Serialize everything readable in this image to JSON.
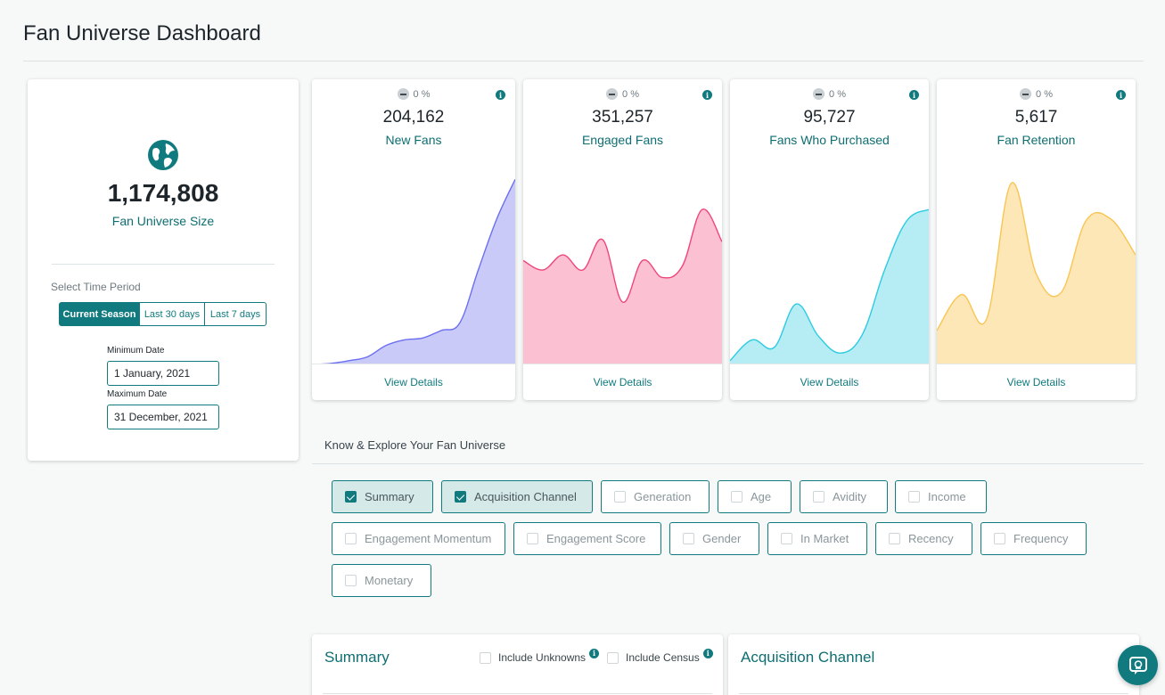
{
  "page": {
    "title": "Fan Universe Dashboard"
  },
  "fan_universe": {
    "size": "1,174,808",
    "label": "Fan Universe Size",
    "icon": "globe-icon",
    "select_period_label": "Select Time Period",
    "periods": [
      "Current Season",
      "Last 30 days",
      "Last 7 days"
    ],
    "active_period": "Current Season",
    "min_date_label": "Minimum Date",
    "min_date": "1 January, 2021",
    "max_date_label": "Maximum Date",
    "max_date": "31 December, 2021"
  },
  "metrics": [
    {
      "delta": "0 %",
      "value": "204,162",
      "label": "New Fans",
      "link": "View Details",
      "color": "#6b6ff0",
      "fill": "#c9caf8",
      "trend": [
        0.0,
        0.005,
        0.02,
        0.04,
        0.1,
        0.13,
        0.14,
        0.18,
        0.22,
        0.5,
        0.77,
        0.98
      ]
    },
    {
      "delta": "0 %",
      "value": "351,257",
      "label": "Engaged Fans",
      "link": "View Details",
      "color": "#f0457a",
      "fill": "#fbc1d2",
      "trend": [
        0.55,
        0.5,
        0.58,
        0.5,
        0.66,
        0.33,
        0.55,
        0.46,
        0.52,
        0.82,
        0.65
      ]
    },
    {
      "delta": "0 %",
      "value": "95,727",
      "label": "Fans Who Purchased",
      "link": "View Details",
      "color": "#2ccbe1",
      "fill": "#b6edf5",
      "trend": [
        0.02,
        0.13,
        0.09,
        0.32,
        0.15,
        0.06,
        0.16,
        0.5,
        0.76,
        0.82
      ]
    },
    {
      "delta": "0 %",
      "value": "5,617",
      "label": "Fan Retention",
      "link": "View Details",
      "color": "#f8c552",
      "fill": "#fde7b6",
      "trend": [
        0.18,
        0.37,
        0.24,
        0.96,
        0.48,
        0.38,
        0.76,
        0.77,
        0.58
      ]
    }
  ],
  "explore": {
    "title": "Know & Explore Your Fan Universe",
    "chips": [
      {
        "label": "Summary",
        "checked": true
      },
      {
        "label": "Acquisition Channel",
        "checked": true
      },
      {
        "label": "Generation",
        "checked": false
      },
      {
        "label": "Age",
        "checked": false
      },
      {
        "label": "Avidity",
        "checked": false
      },
      {
        "label": "Income",
        "checked": false
      },
      {
        "label": "Engagement Momentum",
        "checked": false
      },
      {
        "label": "Engagement Score",
        "checked": false
      },
      {
        "label": "Gender",
        "checked": false
      },
      {
        "label": "In Market",
        "checked": false
      },
      {
        "label": "Recency",
        "checked": false
      },
      {
        "label": "Frequency",
        "checked": false
      },
      {
        "label": "Monetary",
        "checked": false
      }
    ]
  },
  "summary_panel": {
    "title": "Summary",
    "include_unknowns": "Include Unknowns",
    "include_census": "Include Census"
  },
  "acquisition_panel": {
    "title": "Acquisition Channel"
  },
  "chat": {
    "icon": "chat-support-icon"
  }
}
